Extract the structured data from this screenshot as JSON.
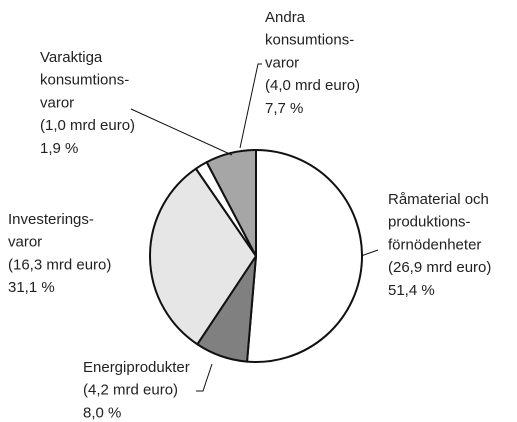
{
  "chart_data": {
    "type": "pie",
    "categories": [
      [
        "Råmaterial och",
        "produktions-",
        "förnödenheter"
      ],
      [
        "Energiprodukter"
      ],
      [
        "Investerings-",
        "varor"
      ],
      [
        "Varaktiga",
        "konsumtions-",
        "varor"
      ],
      [
        "Andra",
        "konsumtions-",
        "varor"
      ]
    ],
    "values": [
      51.4,
      8.0,
      31.1,
      1.9,
      7.7
    ],
    "value_labels": [
      "51,4 %",
      "8,0 %",
      "31,1 %",
      "1,9 %",
      "7,7 %"
    ],
    "amounts": [
      26.9,
      4.2,
      16.3,
      1.0,
      4.0
    ],
    "amount_labels": [
      "(26,9 mrd euro)",
      "(4,2 mrd euro)",
      "(16,3 mrd euro)",
      "(1,0 mrd euro)",
      "(4,0 mrd euro)"
    ],
    "colors": [
      "#ffffff",
      "#808080",
      "#e6e6e6",
      "#ffffff",
      "#a6a6a6"
    ]
  }
}
